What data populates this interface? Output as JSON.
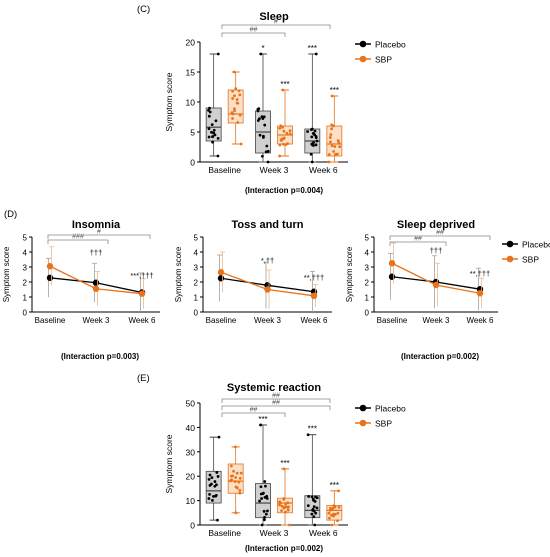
{
  "colors": {
    "placebo": "#000000",
    "sbp": "#e8731c",
    "box_placebo": "#d0d0d0",
    "box_sbp": "#fbe0c8",
    "err_placebo": "#a0a0a0",
    "err_sbp": "#f0b888"
  },
  "chart_data": [
    {
      "panel": "(C)",
      "title": "Sleep",
      "type": "box",
      "ylabel": "Symptom score",
      "ylim": [
        0,
        20
      ],
      "yticks": [
        0,
        5,
        10,
        15,
        20
      ],
      "categories": [
        "Baseline",
        "Week 3",
        "Week 6"
      ],
      "legend": [
        "Placebo",
        "SBP"
      ],
      "legend_position": "right",
      "interaction": "(Interaction p=0.004)",
      "series": [
        {
          "name": "Placebo",
          "boxes": [
            {
              "min": 1,
              "q1": 3.5,
              "median": 5.8,
              "q3": 9,
              "max": 18
            },
            {
              "min": 0,
              "q1": 1.5,
              "median": 5,
              "q3": 8.5,
              "max": 18
            },
            {
              "min": 0,
              "q1": 1.5,
              "median": 3.5,
              "q3": 5.5,
              "max": 18
            }
          ]
        },
        {
          "name": "SBP",
          "boxes": [
            {
              "min": 3,
              "q1": 6.5,
              "median": 8,
              "q3": 12,
              "max": 15
            },
            {
              "min": 1,
              "q1": 3,
              "median": 4.5,
              "q3": 6,
              "max": 12
            },
            {
              "min": 0,
              "q1": 1,
              "median": 3,
              "q3": 6,
              "max": 11
            }
          ]
        }
      ],
      "annotations": {
        "placebo": [
          "",
          "*",
          "***"
        ],
        "sbp": [
          "",
          "***",
          "***"
        ]
      },
      "brackets": [
        "##",
        "#"
      ]
    },
    {
      "panel": "(D)",
      "title": "Insomnia",
      "type": "line",
      "ylabel": "Symptom score",
      "ylim": [
        0,
        5
      ],
      "yticks": [
        0,
        1,
        2,
        3,
        4,
        5
      ],
      "categories": [
        "Baseline",
        "Week 3",
        "Week 6"
      ],
      "series": [
        {
          "name": "Placebo",
          "values": [
            2.28,
            1.95,
            1.3
          ],
          "err": [
            1.3,
            1.3,
            1.3
          ]
        },
        {
          "name": "SBP",
          "values": [
            3.05,
            1.55,
            1.22
          ],
          "err": [
            1.3,
            1.15,
            1.0
          ]
        }
      ],
      "annotations": [
        "",
        "†††",
        "***,†††"
      ],
      "brackets": [
        "###",
        "#"
      ]
    },
    {
      "panel": "",
      "title": "Toss and turn",
      "type": "line",
      "ylabel": "Symptom score",
      "ylim": [
        0,
        5
      ],
      "yticks": [
        0,
        1,
        2,
        3,
        4,
        5
      ],
      "categories": [
        "Baseline",
        "Week 3",
        "Week 6"
      ],
      "series": [
        {
          "name": "Placebo",
          "values": [
            2.25,
            1.78,
            1.35
          ],
          "err": [
            1.55,
            1.55,
            1.35
          ]
        },
        {
          "name": "SBP",
          "values": [
            2.65,
            1.5,
            1.08
          ],
          "err": [
            1.35,
            1.3,
            0.75
          ]
        }
      ],
      "annotations": [
        "",
        "*,††",
        "**,†††"
      ],
      "brackets": []
    },
    {
      "panel": "",
      "title": "Sleep deprived",
      "type": "line",
      "ylabel": "Symptom score",
      "ylim": [
        0,
        5
      ],
      "yticks": [
        0,
        1,
        2,
        3,
        4,
        5
      ],
      "categories": [
        "Baseline",
        "Week 3",
        "Week 6"
      ],
      "legend": [
        "Placebo",
        "SBP"
      ],
      "legend_position": "right",
      "series": [
        {
          "name": "Placebo",
          "values": [
            2.35,
            2.0,
            1.52
          ],
          "err": [
            1.55,
            1.75,
            1.4
          ]
        },
        {
          "name": "SBP",
          "values": [
            3.25,
            1.8,
            1.25
          ],
          "err": [
            1.35,
            1.45,
            1.0
          ]
        }
      ],
      "annotations": [
        "",
        "†††",
        "**,†††"
      ],
      "brackets": [
        "##",
        "##"
      ]
    },
    {
      "panel": "(E)",
      "title": "Systemic reaction",
      "type": "box",
      "ylabel": "Symptom score",
      "ylim": [
        0,
        50
      ],
      "yticks": [
        0,
        10,
        20,
        30,
        40,
        50
      ],
      "categories": [
        "Baseline",
        "Week 3",
        "Week 6"
      ],
      "legend": [
        "Placebo",
        "SBP"
      ],
      "legend_position": "right",
      "interaction": "(Interaction p=0.002)",
      "series": [
        {
          "name": "Placebo",
          "boxes": [
            {
              "min": 2,
              "q1": 9,
              "median": 14,
              "q3": 22,
              "max": 36
            },
            {
              "min": 0,
              "q1": 3,
              "median": 9,
              "q3": 17,
              "max": 41
            },
            {
              "min": 0,
              "q1": 3,
              "median": 6,
              "q3": 12,
              "max": 37
            }
          ]
        },
        {
          "name": "SBP",
          "boxes": [
            {
              "min": 5,
              "q1": 13,
              "median": 18,
              "q3": 25,
              "max": 32
            },
            {
              "min": 0,
              "q1": 5,
              "median": 9,
              "q3": 11,
              "max": 23
            },
            {
              "min": 0,
              "q1": 2,
              "median": 6,
              "q3": 8,
              "max": 14
            }
          ]
        }
      ],
      "annotations": {
        "placebo": [
          "",
          "***",
          "***"
        ],
        "sbp": [
          "",
          "***",
          "***"
        ]
      },
      "brackets": [
        "##",
        "##",
        "##"
      ]
    }
  ],
  "interactions_d": [
    "(Interaction p=0.003)",
    "(Interaction p=0.002)"
  ]
}
